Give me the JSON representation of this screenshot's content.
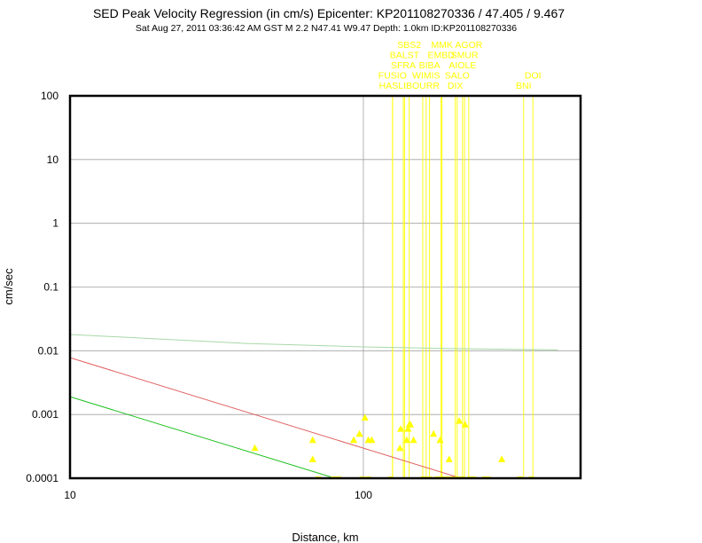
{
  "colors": {
    "background": "#ffffff",
    "frame": "#000000",
    "grid": "#a0a0a0",
    "station": "#ffff00",
    "regression": "#e06060",
    "lower_bound": "#20c020",
    "upper_bound": "#a8d8a8"
  },
  "chart_data": {
    "type": "scatter",
    "title": "SED Peak Velocity Regression (in cm/s) Epicenter: KP201108270336 / 47.405 / 9.467",
    "subtitle": "Sat Aug 27, 2011 03:36:42 AM GST    M 2.2    N47.41 W9.47    Depth: 1.0km    ID:KP201108270336",
    "xlabel": "Distance, km",
    "ylabel": "cm/sec",
    "x_scale": "log",
    "y_scale": "log",
    "xlim": [
      10,
      550
    ],
    "ylim": [
      0.0001,
      100
    ],
    "x_ticks": [
      {
        "v": 10,
        "label": "10"
      },
      {
        "v": 100,
        "label": "100"
      }
    ],
    "y_ticks": [
      {
        "v": 100,
        "label": "100"
      },
      {
        "v": 10,
        "label": "10"
      },
      {
        "v": 1,
        "label": "1"
      },
      {
        "v": 0.1,
        "label": "0.1"
      },
      {
        "v": 0.01,
        "label": "0.01"
      },
      {
        "v": 0.001,
        "label": "0.001"
      },
      {
        "v": 0.0001,
        "label": "0.0001"
      }
    ],
    "grid": true,
    "series": [
      {
        "kind": "triangles",
        "color": "#ffff00",
        "points": [
          [
            42.7,
            0.0003
          ],
          [
            67.2,
            0.0004
          ],
          [
            67.2,
            0.0002
          ],
          [
            92.7,
            0.0004
          ],
          [
            97.0,
            0.0005
          ],
          [
            101.2,
            0.0009
          ],
          [
            103.9,
            0.0004
          ],
          [
            106.8,
            0.0004
          ],
          [
            133.2,
            0.0003
          ],
          [
            134.0,
            0.0006
          ],
          [
            140.7,
            0.0004
          ],
          [
            142.0,
            0.0006
          ],
          [
            143.3,
            0.0007
          ],
          [
            144.6,
            0.0007
          ],
          [
            148.2,
            0.0004
          ],
          [
            173.5,
            0.0005
          ],
          [
            182.7,
            0.0004
          ],
          [
            196.0,
            0.0002
          ],
          [
            212.2,
            0.0008
          ],
          [
            222.1,
            0.0007
          ],
          [
            296.3,
            0.0002
          ]
        ]
      },
      {
        "kind": "dashes",
        "color": "#ffff00",
        "points": [
          [
            70.2,
            0.0001
          ],
          [
            79.0,
            0.0001
          ],
          [
            82.4,
            0.0001
          ],
          [
            99.1,
            0.0001
          ],
          [
            103.9,
            0.0001
          ],
          [
            123.9,
            0.0001
          ],
          [
            160.0,
            0.0001
          ],
          [
            168.1,
            0.0001
          ],
          [
            178.8,
            0.0001
          ],
          [
            185.4,
            0.0001
          ],
          [
            188.9,
            0.0001
          ],
          [
            194.5,
            0.0001
          ],
          [
            200.5,
            0.0001
          ],
          [
            208.8,
            0.0001
          ],
          [
            212.2,
            0.0001
          ],
          [
            217.8,
            0.0001
          ],
          [
            231.0,
            0.0001
          ],
          [
            237.5,
            0.0001
          ],
          [
            259.1,
            0.0001
          ],
          [
            265.4,
            0.0001
          ],
          [
            342.0,
            0.0001
          ],
          [
            374.0,
            0.0001
          ]
        ]
      },
      {
        "kind": "line",
        "color": "#e06060",
        "points": [
          [
            10,
            0.0078
          ],
          [
            215,
            0.0001
          ]
        ]
      },
      {
        "kind": "line",
        "color": "#20c020",
        "points": [
          [
            10,
            0.0019
          ],
          [
            80,
            0.0001
          ]
        ]
      },
      {
        "kind": "line",
        "color": "#a8d8a8",
        "points": [
          [
            10,
            0.018
          ],
          [
            40,
            0.013
          ],
          [
            100,
            0.0115
          ],
          [
            200,
            0.0108
          ],
          [
            460,
            0.0103
          ]
        ]
      }
    ],
    "stations": [
      {
        "name": "HASLI",
        "x": 125.7
      },
      {
        "name": "FUSIO",
        "x": 125.7
      },
      {
        "name": "SFRA",
        "x": 136.8
      },
      {
        "name": "BALST",
        "x": 138.1
      },
      {
        "name": "SBS2",
        "x": 143.3
      },
      {
        "name": "BOURR",
        "x": 159.4
      },
      {
        "name": "WIMIS",
        "x": 163.7
      },
      {
        "name": "BIBA",
        "x": 168.1
      },
      {
        "name": "EMBD",
        "x": 184.0
      },
      {
        "name": "MMK",
        "x": 185.4
      },
      {
        "name": "DIX",
        "x": 205.7
      },
      {
        "name": "SALO",
        "x": 208.8
      },
      {
        "name": "AIOLE",
        "x": 217.8
      },
      {
        "name": "SMUR",
        "x": 221.2
      },
      {
        "name": "AGOR",
        "x": 228.7
      },
      {
        "name": "BNI",
        "x": 351.8
      },
      {
        "name": "DOI",
        "x": 378.3
      }
    ]
  }
}
